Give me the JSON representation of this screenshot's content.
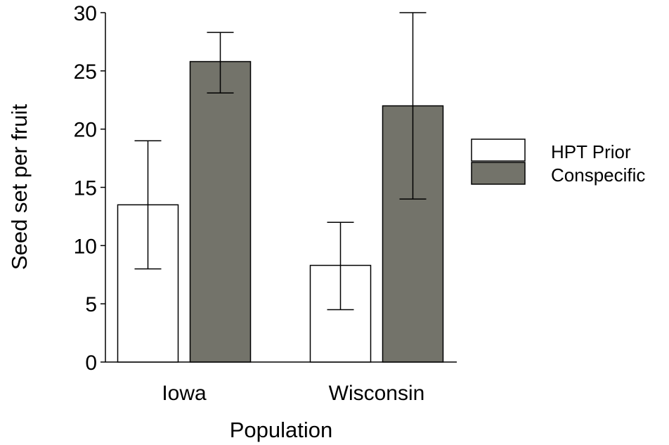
{
  "chart_data": {
    "type": "bar",
    "title": "",
    "xlabel": "Population",
    "ylabel": "Seed set per fruit",
    "ylim": [
      0,
      30
    ],
    "yticks": [
      0,
      5,
      10,
      15,
      20,
      25,
      30
    ],
    "categories": [
      "Iowa",
      "Wisconsin"
    ],
    "series": [
      {
        "name": "HPT Prior",
        "color": "#ffffff",
        "values": [
          13.5,
          8.3
        ],
        "error_low": [
          8.0,
          4.5
        ],
        "error_high": [
          19.0,
          12.0
        ]
      },
      {
        "name": "Conspecific",
        "color": "#73736a",
        "values": [
          25.8,
          22.0
        ],
        "error_low": [
          23.1,
          14.0
        ],
        "error_high": [
          28.3,
          30.0
        ]
      }
    ],
    "grid": false,
    "legend": "right"
  }
}
